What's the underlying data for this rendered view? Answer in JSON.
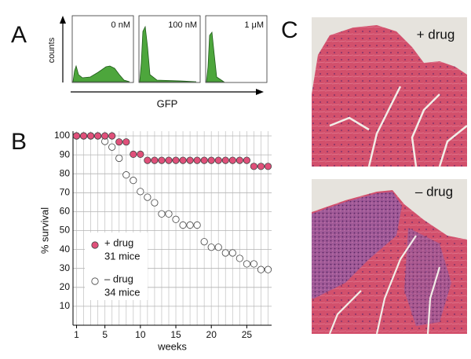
{
  "panels": {
    "a": "A",
    "b": "B",
    "c": "C"
  },
  "panel_a": {
    "y_label": "counts",
    "x_label": "GFP",
    "histograms": [
      {
        "label": "0 nM"
      },
      {
        "label": "100 nM"
      },
      {
        "label": "1 μM"
      }
    ]
  },
  "panel_c": {
    "labels": [
      "+ drug",
      "– drug"
    ]
  },
  "chart_data": {
    "type": "scatter",
    "x_label": "weeks",
    "y_label": "% survival",
    "x": [
      1,
      2,
      3,
      4,
      5,
      6,
      7,
      8,
      9,
      10,
      11,
      12,
      13,
      14,
      15,
      16,
      17,
      18,
      19,
      20,
      21,
      22,
      23,
      24,
      25,
      26,
      27,
      28
    ],
    "series": [
      {
        "name": "+ drug",
        "note": "31 mice",
        "color": "#e0507a",
        "values": [
          100,
          100,
          100,
          100,
          100,
          100,
          96.8,
          96.8,
          90.3,
          90.3,
          87.1,
          87.1,
          87.1,
          87.1,
          87.1,
          87.1,
          87.1,
          87.1,
          87.1,
          87.1,
          87.1,
          87.1,
          87.1,
          87.1,
          87.1,
          83.9,
          83.9,
          83.9
        ]
      },
      {
        "name": "– drug",
        "note": "34 mice",
        "color": "#ffffff",
        "values": [
          100,
          100,
          100,
          100,
          97.1,
          94.1,
          88.2,
          79.4,
          76.5,
          70.6,
          67.6,
          64.7,
          58.8,
          58.8,
          55.9,
          52.9,
          52.9,
          52.9,
          44.1,
          41.2,
          41.2,
          38.2,
          38.2,
          35.3,
          32.4,
          32.4,
          29.4,
          29.4
        ]
      }
    ],
    "xlim": [
      0.5,
      28.5
    ],
    "ylim": [
      0,
      100
    ],
    "xticks": [
      1,
      5,
      10,
      15,
      20,
      25
    ],
    "yticks": [
      10,
      20,
      30,
      40,
      50,
      60,
      70,
      80,
      90,
      100
    ],
    "grid": true
  }
}
